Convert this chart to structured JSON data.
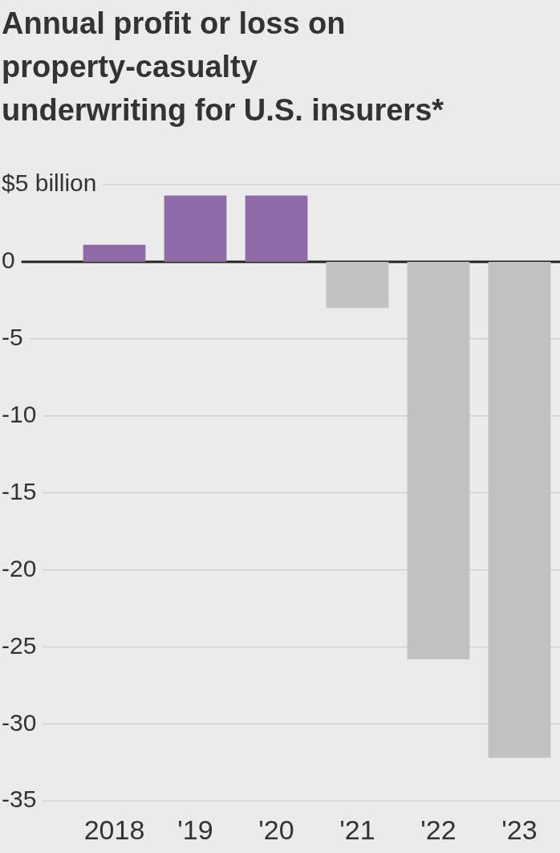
{
  "chart_data": {
    "type": "bar",
    "title": "Annual profit or loss on property-casualty underwriting for U.S. insurers*",
    "categories": [
      "2018",
      "'19",
      "'20",
      "'21",
      "'22",
      "'23"
    ],
    "values": [
      1.1,
      4.3,
      4.3,
      -3.0,
      -25.8,
      -32.2
    ],
    "colors": [
      "#8f6ba8",
      "#8f6ba8",
      "#8f6ba8",
      "#c1c1c1",
      "#c1c1c1",
      "#c1c1c1"
    ],
    "ylim": [
      -35,
      5
    ],
    "yticks": [
      {
        "value": 5,
        "label": "$5 billion"
      },
      0,
      -5,
      -10,
      -15,
      -20,
      -25,
      -30,
      -35
    ],
    "grid": "y",
    "legend": false
  }
}
